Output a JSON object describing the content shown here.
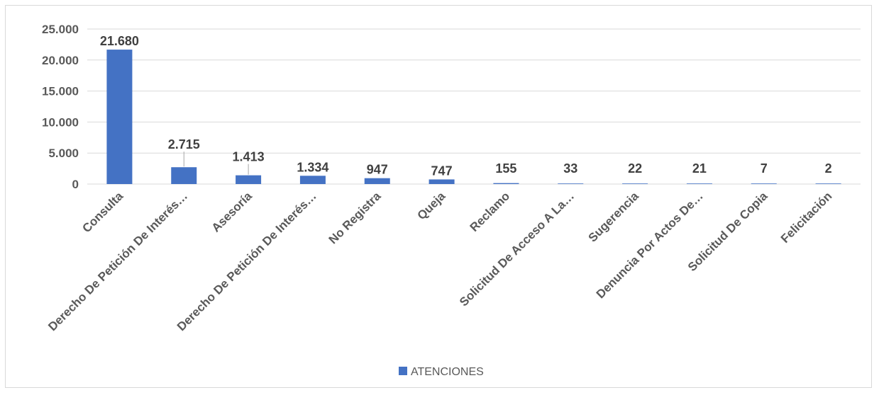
{
  "chart_data": {
    "type": "bar",
    "categories": [
      "Consulta",
      "Derecho De Petición De Interés…",
      "Asesoría",
      "Derecho De Petición De Interés…",
      "No Registra",
      "Queja",
      "Reclamo",
      "Solicitud De Acceso A La…",
      "Sugerencia",
      "Denuncia Por Actos De…",
      "Solicitud De Copia",
      "Felicitación"
    ],
    "series": [
      {
        "name": "ATENCIONES",
        "values": [
          21680,
          2715,
          1413,
          1334,
          947,
          747,
          155,
          33,
          22,
          21,
          7,
          2
        ],
        "labels": [
          "21.680",
          "2.715",
          "1.413",
          "1.334",
          "947",
          "747",
          "155",
          "33",
          "22",
          "21",
          "7",
          "2"
        ]
      }
    ],
    "yticks": [
      {
        "value": 0,
        "label": "0"
      },
      {
        "value": 5000,
        "label": "5.000"
      },
      {
        "value": 10000,
        "label": "10.000"
      },
      {
        "value": 15000,
        "label": "15.000"
      },
      {
        "value": 20000,
        "label": "20.000"
      },
      {
        "value": 25000,
        "label": "25.000"
      }
    ],
    "ylim": [
      0,
      25000
    ],
    "grid": true,
    "legend_position": "bottom",
    "bar_color": "#4472c4",
    "grid_color": "#d9d9d9",
    "leader_color": "#a6a6a6"
  }
}
